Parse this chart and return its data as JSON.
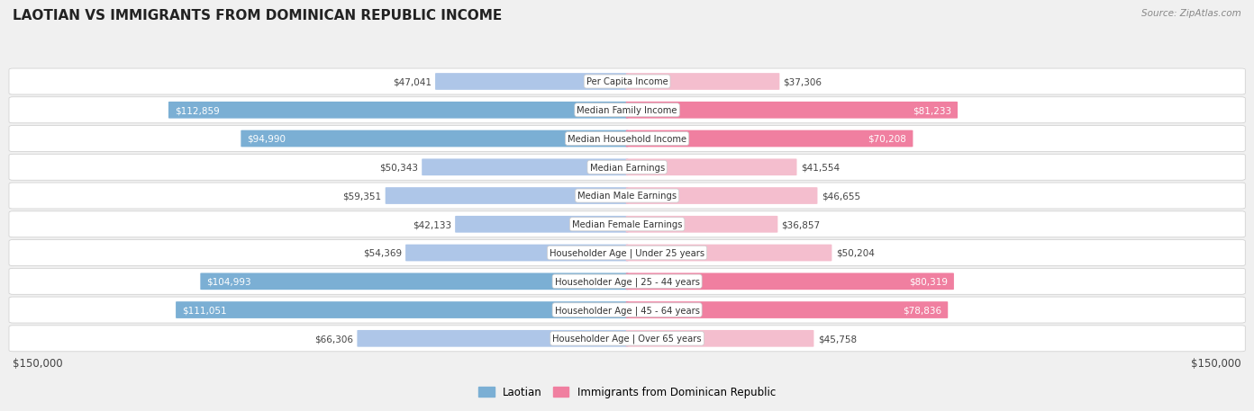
{
  "title": "LAOTIAN VS IMMIGRANTS FROM DOMINICAN REPUBLIC INCOME",
  "source": "Source: ZipAtlas.com",
  "categories": [
    "Per Capita Income",
    "Median Family Income",
    "Median Household Income",
    "Median Earnings",
    "Median Male Earnings",
    "Median Female Earnings",
    "Householder Age | Under 25 years",
    "Householder Age | 25 - 44 years",
    "Householder Age | 45 - 64 years",
    "Householder Age | Over 65 years"
  ],
  "laotian_values": [
    47041,
    112859,
    94990,
    50343,
    59351,
    42133,
    54369,
    104993,
    111051,
    66306
  ],
  "dominican_values": [
    37306,
    81233,
    70208,
    41554,
    46655,
    36857,
    50204,
    80319,
    78836,
    45758
  ],
  "laotian_labels": [
    "$47,041",
    "$112,859",
    "$94,990",
    "$50,343",
    "$59,351",
    "$42,133",
    "$54,369",
    "$104,993",
    "$111,051",
    "$66,306"
  ],
  "dominican_labels": [
    "$37,306",
    "$81,233",
    "$70,208",
    "$41,554",
    "$46,655",
    "$36,857",
    "$50,204",
    "$80,319",
    "$78,836",
    "$45,758"
  ],
  "laotian_color_light": "#aec6e8",
  "laotian_color_dark": "#7bafd4",
  "dominican_color_light": "#f4bece",
  "dominican_color_dark": "#f07fa0",
  "max_value": 150000,
  "background_color": "#f0f0f0",
  "row_bg_color": "#ffffff",
  "legend_laotian": "Laotian",
  "legend_dominican": "Immigrants from Dominican Republic",
  "xlabel_left": "$150,000",
  "xlabel_right": "$150,000",
  "laotian_inside_threshold": 80000,
  "dominican_inside_threshold": 65000
}
